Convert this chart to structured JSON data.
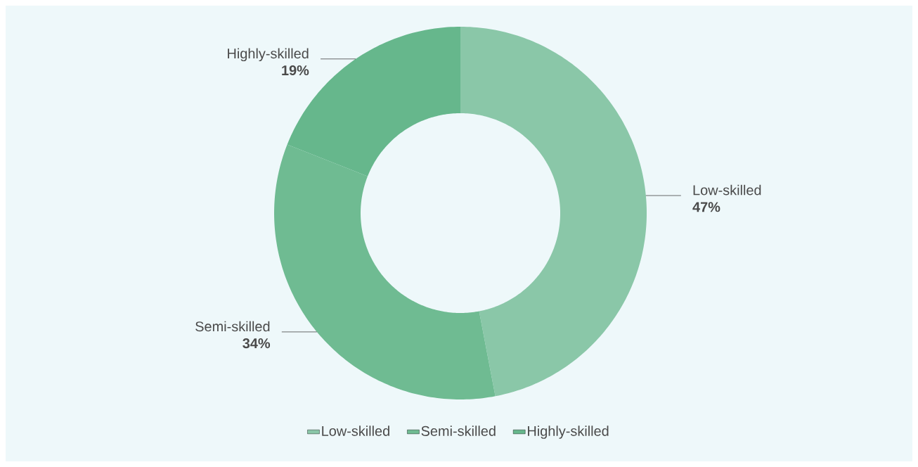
{
  "chart_data": {
    "type": "donut",
    "categories": [
      "Low-skilled",
      "Semi-skilled",
      "Highly-skilled"
    ],
    "values": [
      47,
      34,
      19
    ],
    "value_labels": [
      "47%",
      "34%",
      "19%"
    ],
    "colors": [
      "#8ac7a8",
      "#6fbb92",
      "#66b78c"
    ],
    "legend": "bottom"
  }
}
